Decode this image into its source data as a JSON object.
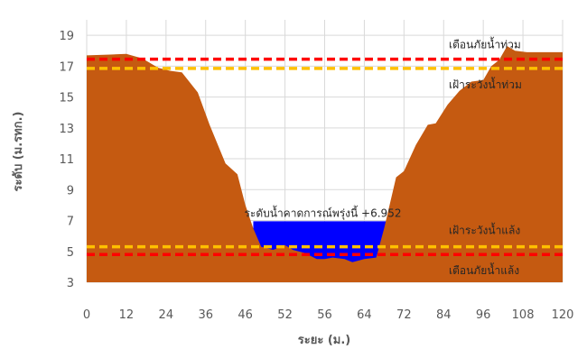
{
  "chart_data": {
    "type": "area",
    "xlabel": "ระยะ (ม.)",
    "ylabel": "ระดับ (ม.รทก.)",
    "xlim": [
      0,
      120
    ],
    "ylim": [
      3,
      20
    ],
    "x_ticks": [
      "0",
      "12",
      "24",
      "36",
      "46",
      "52",
      "56",
      "64",
      "72",
      "84",
      "96",
      "108",
      "120"
    ],
    "y_ticks": [
      "3",
      "5",
      "7",
      "9",
      "11",
      "13",
      "15",
      "17",
      "19"
    ],
    "grid": true,
    "colors": {
      "ground": "#C55A11",
      "water": "#0000FF",
      "warning": "#FF0000",
      "watch": "#FFC000",
      "grid": "#D9D9D9"
    },
    "ground_profile": [
      [
        0,
        17.7
      ],
      [
        6,
        17.75
      ],
      [
        10,
        17.8
      ],
      [
        14,
        17.5
      ],
      [
        18,
        16.9
      ],
      [
        21,
        16.7
      ],
      [
        24,
        16.6
      ],
      [
        28,
        15.3
      ],
      [
        31,
        13.2
      ],
      [
        35,
        10.7
      ],
      [
        38,
        10.0
      ],
      [
        40,
        8.0
      ],
      [
        42,
        6.5
      ],
      [
        44,
        5.3
      ],
      [
        47,
        5.1
      ],
      [
        50,
        5.4
      ],
      [
        52,
        5.1
      ],
      [
        55,
        4.9
      ],
      [
        58,
        4.5
      ],
      [
        60,
        4.5
      ],
      [
        62,
        4.6
      ],
      [
        65,
        4.5
      ],
      [
        67,
        4.3
      ],
      [
        70,
        4.5
      ],
      [
        73,
        4.6
      ],
      [
        75,
        6.5
      ],
      [
        78,
        9.8
      ],
      [
        80,
        10.2
      ],
      [
        83,
        11.9
      ],
      [
        86,
        13.2
      ],
      [
        88,
        13.3
      ],
      [
        91,
        14.5
      ],
      [
        94,
        15.4
      ],
      [
        97,
        16.0
      ],
      [
        100,
        16.1
      ],
      [
        102,
        17.0
      ],
      [
        104,
        17.4
      ],
      [
        106,
        18.3
      ],
      [
        108,
        18.0
      ],
      [
        111,
        17.9
      ],
      [
        116,
        17.9
      ],
      [
        120,
        17.9
      ]
    ],
    "water_level": {
      "label": "ระดับน้ำคาดการณ์พรุ่งนี้ +6.952",
      "value": 6.952,
      "x_range": [
        42,
        80
      ]
    },
    "reference_lines": [
      {
        "label": "เตือนภัยน้ำท่วม",
        "value": 17.45,
        "style": "warning"
      },
      {
        "label": "เฝ้าระวังน้ำท่วม",
        "value": 16.85,
        "style": "watch"
      },
      {
        "label": "เฝ้าระวังน้ำแล้ง",
        "value": 5.3,
        "style": "watch"
      },
      {
        "label": "เตือนภัยน้ำแล้ง",
        "value": 4.8,
        "style": "warning"
      }
    ]
  }
}
